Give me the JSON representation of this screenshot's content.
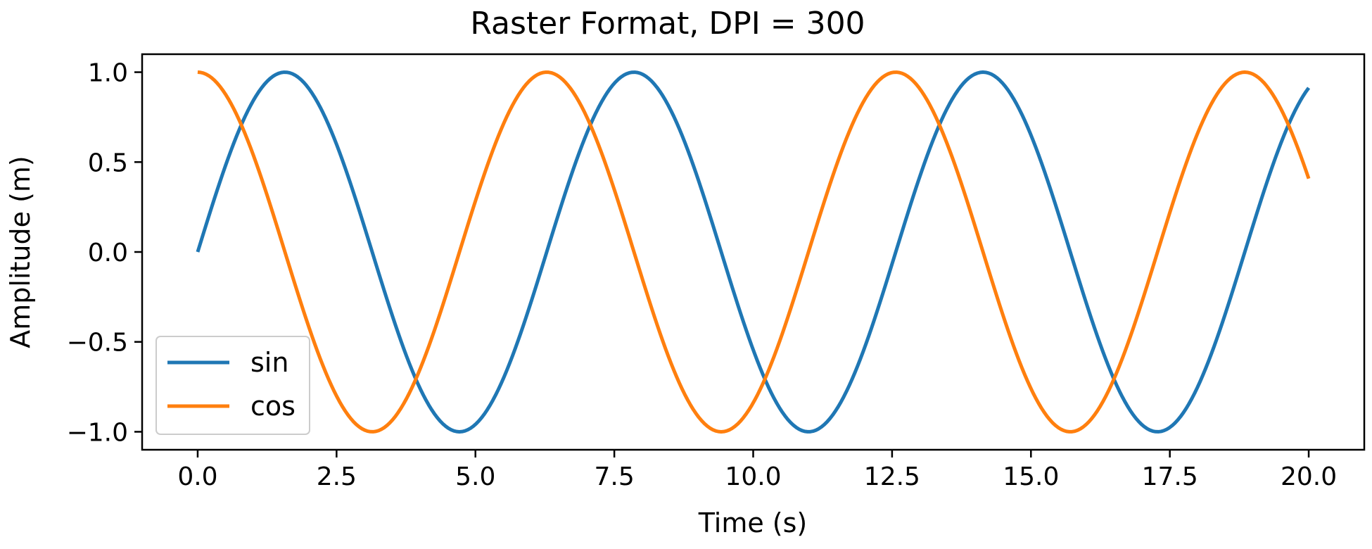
{
  "chart_data": {
    "type": "line",
    "title": "Raster Format, DPI = 300",
    "xlabel": "Time (s)",
    "ylabel": "Amplitude (m)",
    "xlim": [
      -1.0,
      21.0
    ],
    "ylim": [
      -1.1,
      1.1
    ],
    "xticks": [
      0.0,
      2.5,
      5.0,
      7.5,
      10.0,
      12.5,
      15.0,
      17.5,
      20.0
    ],
    "xtick_labels": [
      "0.0",
      "2.5",
      "5.0",
      "7.5",
      "10.0",
      "12.5",
      "15.0",
      "17.5",
      "20.0"
    ],
    "yticks": [
      1.0,
      0.5,
      0.0,
      -0.5,
      -1.0
    ],
    "ytick_labels": [
      "1.0",
      "0.5",
      "0.0",
      "−0.5",
      "−1.0"
    ],
    "grid": false,
    "legend_position": "lower-left",
    "x_range": [
      0,
      20
    ],
    "sample_count": 400,
    "series": [
      {
        "name": "sin",
        "function": "sin(t)",
        "color": "#1f77b4"
      },
      {
        "name": "cos",
        "function": "cos(t)",
        "color": "#ff7f0e"
      }
    ]
  }
}
